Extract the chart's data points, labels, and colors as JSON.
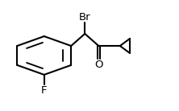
{
  "background": "#ffffff",
  "line_color": "#000000",
  "line_width": 1.5,
  "font_size": 9.5,
  "br_label": "Br",
  "o_label": "O",
  "f_label": "F"
}
